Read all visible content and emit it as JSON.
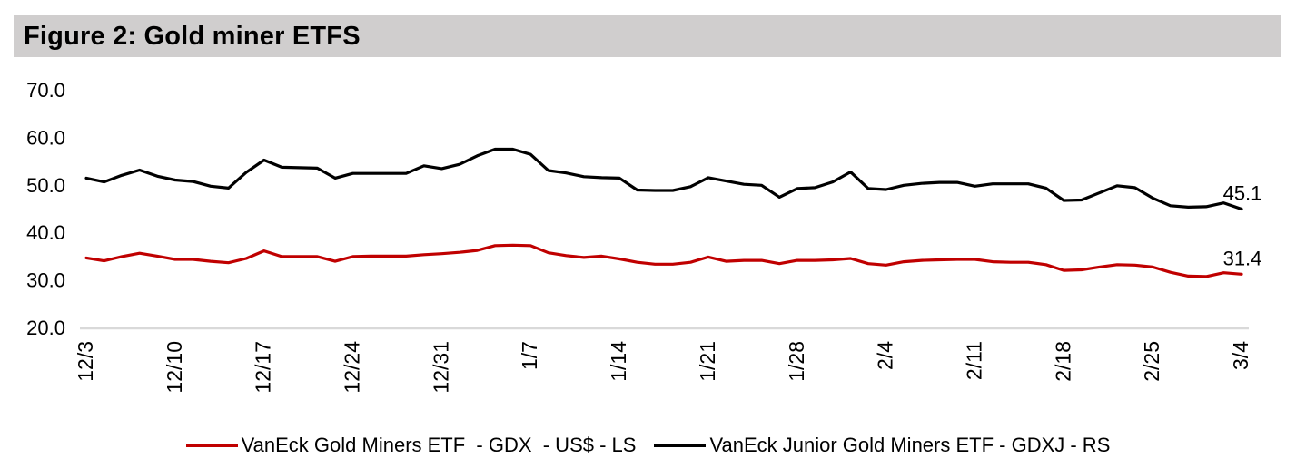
{
  "title": "Figure 2: Gold miner ETFS",
  "colors": {
    "title_bar_bg": "#d0cece",
    "axis_line": "#d9d9d9",
    "text": "#000000",
    "gdx_red": "#c00000",
    "gdxj_black": "#000000"
  },
  "chart_data": {
    "type": "line",
    "title": "Figure 2: Gold miner ETFS",
    "xlabel": "",
    "ylabel": "",
    "ylim": [
      20,
      70
    ],
    "ytick_step": 10,
    "ytick_labels": [
      "70.0",
      "60.0",
      "50.0",
      "40.0",
      "30.0",
      "20.0"
    ],
    "x_tick_every": 5,
    "grid": "baseline-only",
    "legend_position": "bottom",
    "categories": [
      "12/3",
      "12/4",
      "12/5",
      "12/6",
      "12/9",
      "12/10",
      "12/11",
      "12/12",
      "12/13",
      "12/16",
      "12/17",
      "12/18",
      "12/19",
      "12/20",
      "12/23",
      "12/24",
      "12/25",
      "12/26",
      "12/27",
      "12/30",
      "12/31",
      "1/1",
      "1/2",
      "1/3",
      "1/6",
      "1/7",
      "1/8",
      "1/9",
      "1/10",
      "1/13",
      "1/14",
      "1/15",
      "1/16",
      "1/17",
      "1/20",
      "1/21",
      "1/22",
      "1/23",
      "1/24",
      "1/27",
      "1/28",
      "1/29",
      "1/30",
      "1/31",
      "2/3",
      "2/4",
      "2/5",
      "2/6",
      "2/7",
      "2/10",
      "2/11",
      "2/12",
      "2/13",
      "2/14",
      "2/17",
      "2/18",
      "2/19",
      "2/20",
      "2/21",
      "2/24",
      "2/25",
      "2/26",
      "2/27",
      "2/28",
      "3/3",
      "3/4"
    ],
    "series": [
      {
        "id": "gdx",
        "name": "VanEck Gold Miners ETF  - GDX  - US$ - LS",
        "color": "#c00000",
        "axis": "left",
        "end_label": "31.4",
        "values": [
          34.8,
          34.2,
          35.1,
          35.8,
          35.2,
          34.5,
          34.5,
          34.1,
          33.8,
          34.7,
          36.3,
          35.1,
          35.1,
          35.1,
          34.1,
          35.1,
          35.2,
          35.2,
          35.2,
          35.5,
          35.7,
          36.0,
          36.4,
          37.4,
          37.5,
          37.4,
          35.9,
          35.3,
          34.9,
          35.2,
          34.6,
          33.9,
          33.5,
          33.5,
          33.9,
          35.0,
          34.1,
          34.3,
          34.3,
          33.6,
          34.3,
          34.3,
          34.4,
          34.7,
          33.6,
          33.3,
          34.0,
          34.3,
          34.4,
          34.5,
          34.5,
          34.0,
          33.9,
          33.9,
          33.4,
          32.2,
          32.3,
          32.9,
          33.4,
          33.3,
          32.9,
          31.8,
          31.0,
          30.9,
          31.7,
          31.4
        ]
      },
      {
        "id": "gdxj",
        "name": "VanEck Junior Gold Miners ETF - GDXJ - RS",
        "color": "#000000",
        "axis": "right",
        "end_label": "45.1",
        "values": [
          51.6,
          50.8,
          52.2,
          53.3,
          52.0,
          51.2,
          50.9,
          49.9,
          49.5,
          52.8,
          55.4,
          53.9,
          53.8,
          53.7,
          51.6,
          52.6,
          52.6,
          52.6,
          52.6,
          54.2,
          53.6,
          54.5,
          56.3,
          57.7,
          57.7,
          56.6,
          53.2,
          52.7,
          51.9,
          51.7,
          51.6,
          49.1,
          49.0,
          49.0,
          49.8,
          51.7,
          51.0,
          50.3,
          50.1,
          47.6,
          49.4,
          49.6,
          50.8,
          52.9,
          49.4,
          49.2,
          50.1,
          50.5,
          50.7,
          50.7,
          49.9,
          50.4,
          50.4,
          50.4,
          49.5,
          46.9,
          47.0,
          48.5,
          50.0,
          49.6,
          47.4,
          45.8,
          45.5,
          45.6,
          46.4,
          45.1
        ]
      }
    ]
  }
}
